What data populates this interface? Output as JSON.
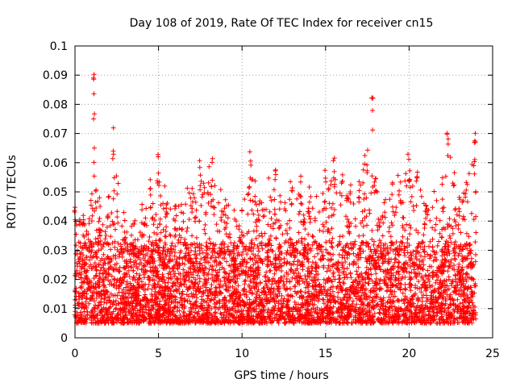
{
  "chart_data": {
    "type": "scatter",
    "title": "Day 108 of 2019, Rate Of TEC Index for receiver cn15",
    "xlabel": "GPS time / hours",
    "ylabel": "ROTI / TECUs",
    "xlim": [
      0,
      25
    ],
    "ylim": [
      0,
      0.1
    ],
    "xticks": [
      0,
      5,
      10,
      15,
      20,
      25
    ],
    "xtick_labels": [
      "0",
      "5",
      "10",
      "15",
      "20",
      "25"
    ],
    "yticks": [
      0,
      0.01,
      0.02,
      0.03,
      0.04,
      0.05,
      0.06,
      0.07,
      0.08,
      0.09,
      0.1
    ],
    "ytick_labels": [
      "0",
      "0.01",
      "0.02",
      "0.03",
      "0.04",
      "0.05",
      "0.06",
      "0.07",
      "0.08",
      "0.09",
      "0.1"
    ],
    "grid": true,
    "marker": "+",
    "marker_color": "#ff0000",
    "series": [
      {
        "name": "ROTI",
        "data_extent": {
          "x": [
            0,
            24
          ],
          "y": [
            0.002,
            0.091
          ]
        },
        "typical_range": [
          0.005,
          0.03
        ],
        "upper_envelope": [
          [
            0.0,
            0.048
          ],
          [
            0.5,
            0.044
          ],
          [
            1.0,
            0.05
          ],
          [
            1.15,
            0.091
          ],
          [
            1.5,
            0.045
          ],
          [
            2.0,
            0.05
          ],
          [
            2.3,
            0.073
          ],
          [
            3.0,
            0.042
          ],
          [
            4.0,
            0.046
          ],
          [
            4.5,
            0.055
          ],
          [
            5.0,
            0.063
          ],
          [
            5.5,
            0.052
          ],
          [
            6.0,
            0.046
          ],
          [
            7.0,
            0.055
          ],
          [
            7.5,
            0.063
          ],
          [
            8.2,
            0.062
          ],
          [
            9.0,
            0.048
          ],
          [
            10.0,
            0.045
          ],
          [
            10.5,
            0.066
          ],
          [
            11.0,
            0.05
          ],
          [
            12.0,
            0.058
          ],
          [
            13.0,
            0.055
          ],
          [
            13.5,
            0.056
          ],
          [
            14.0,
            0.052
          ],
          [
            15.0,
            0.058
          ],
          [
            15.5,
            0.063
          ],
          [
            16.0,
            0.056
          ],
          [
            17.0,
            0.058
          ],
          [
            17.5,
            0.065
          ],
          [
            17.8,
            0.084
          ],
          [
            18.0,
            0.06
          ],
          [
            19.0,
            0.055
          ],
          [
            19.5,
            0.058
          ],
          [
            20.0,
            0.064
          ],
          [
            20.5,
            0.062
          ],
          [
            21.0,
            0.052
          ],
          [
            22.0,
            0.055
          ],
          [
            22.3,
            0.072
          ],
          [
            23.0,
            0.05
          ],
          [
            23.9,
            0.072
          ]
        ]
      }
    ]
  }
}
